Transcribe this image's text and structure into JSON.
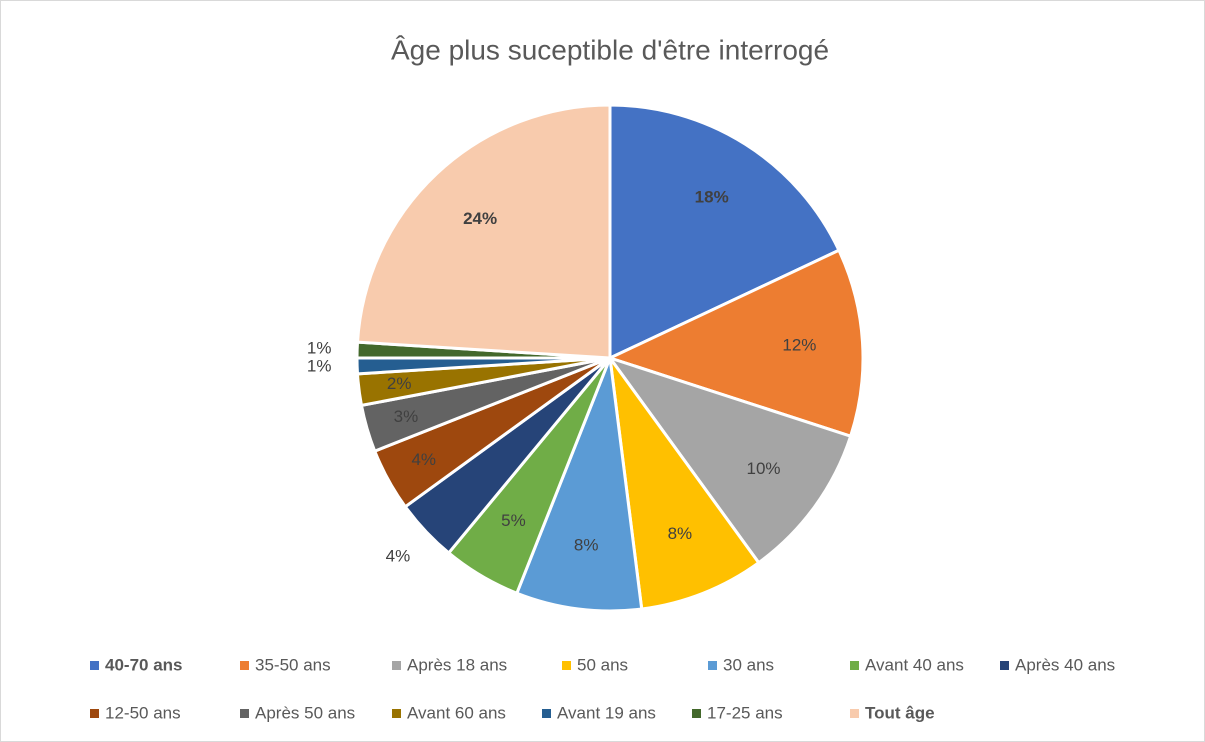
{
  "chart_data": {
    "type": "pie",
    "title": "Âge plus suceptible d'être interrogé",
    "categories": [
      "40-70 ans",
      "35-50 ans",
      "Après 18 ans",
      "50 ans",
      "30 ans",
      "Avant 40 ans",
      "Après 40 ans",
      "12-50 ans",
      "Après 50 ans",
      "Avant 60 ans",
      "Avant 19 ans",
      "17-25 ans",
      "Tout âge"
    ],
    "values": [
      18,
      12,
      10,
      8,
      8,
      5,
      4,
      4,
      3,
      2,
      1,
      1,
      24
    ],
    "value_labels": [
      "18%",
      "12%",
      "10%",
      "8%",
      "8%",
      "5%",
      "4%",
      "4%",
      "3%",
      "2%",
      "1%",
      "1%",
      "24%"
    ],
    "colors": [
      "#4472c4",
      "#ed7d31",
      "#a5a5a5",
      "#ffc000",
      "#5b9bd5",
      "#70ad47",
      "#264478",
      "#9e480e",
      "#636363",
      "#997300",
      "#255e91",
      "#43682b",
      "#f8cbad"
    ],
    "legend": "bottom"
  }
}
